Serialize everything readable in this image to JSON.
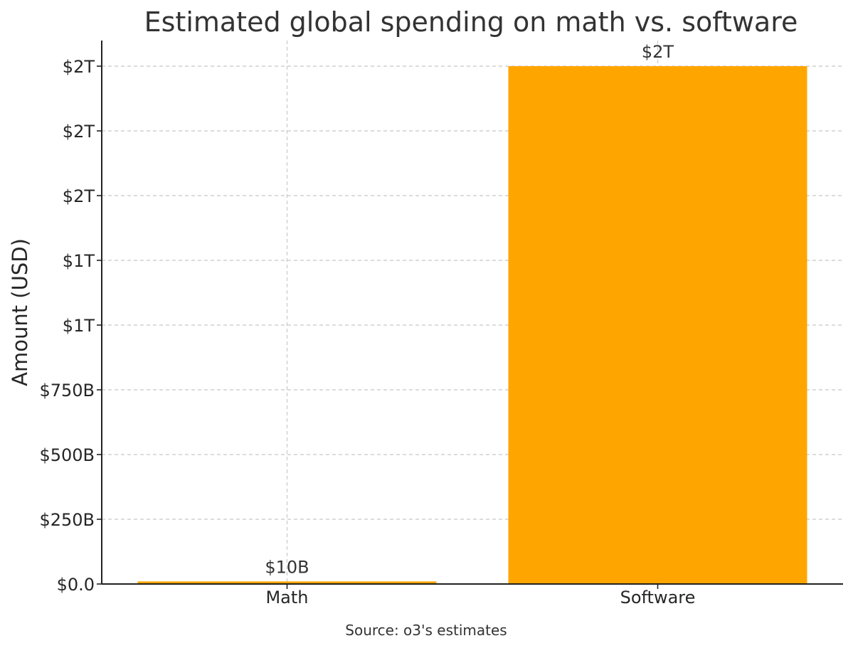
{
  "chart_data": {
    "type": "bar",
    "title": "Estimated global spending on math vs. software",
    "xlabel": "",
    "ylabel": "Amount (USD)",
    "categories": [
      "Math",
      "Software"
    ],
    "values": [
      10000000000,
      2000000000000
    ],
    "value_labels": [
      "$10B",
      "$2T"
    ],
    "bar_color": "#FFA500",
    "ylim": [
      0,
      2100000000000
    ],
    "y_ticks": [
      {
        "value": 0,
        "label": "$0.0"
      },
      {
        "value": 250000000000,
        "label": "$250B"
      },
      {
        "value": 500000000000,
        "label": "$500B"
      },
      {
        "value": 750000000000,
        "label": "$750B"
      },
      {
        "value": 1000000000000,
        "label": "$1T"
      },
      {
        "value": 1250000000000,
        "label": "$1T"
      },
      {
        "value": 1500000000000,
        "label": "$2T"
      },
      {
        "value": 1750000000000,
        "label": "$2T"
      },
      {
        "value": 2000000000000,
        "label": "$2T"
      }
    ],
    "grid": true,
    "legend": "none",
    "source_note": "Source: o3's estimates"
  }
}
